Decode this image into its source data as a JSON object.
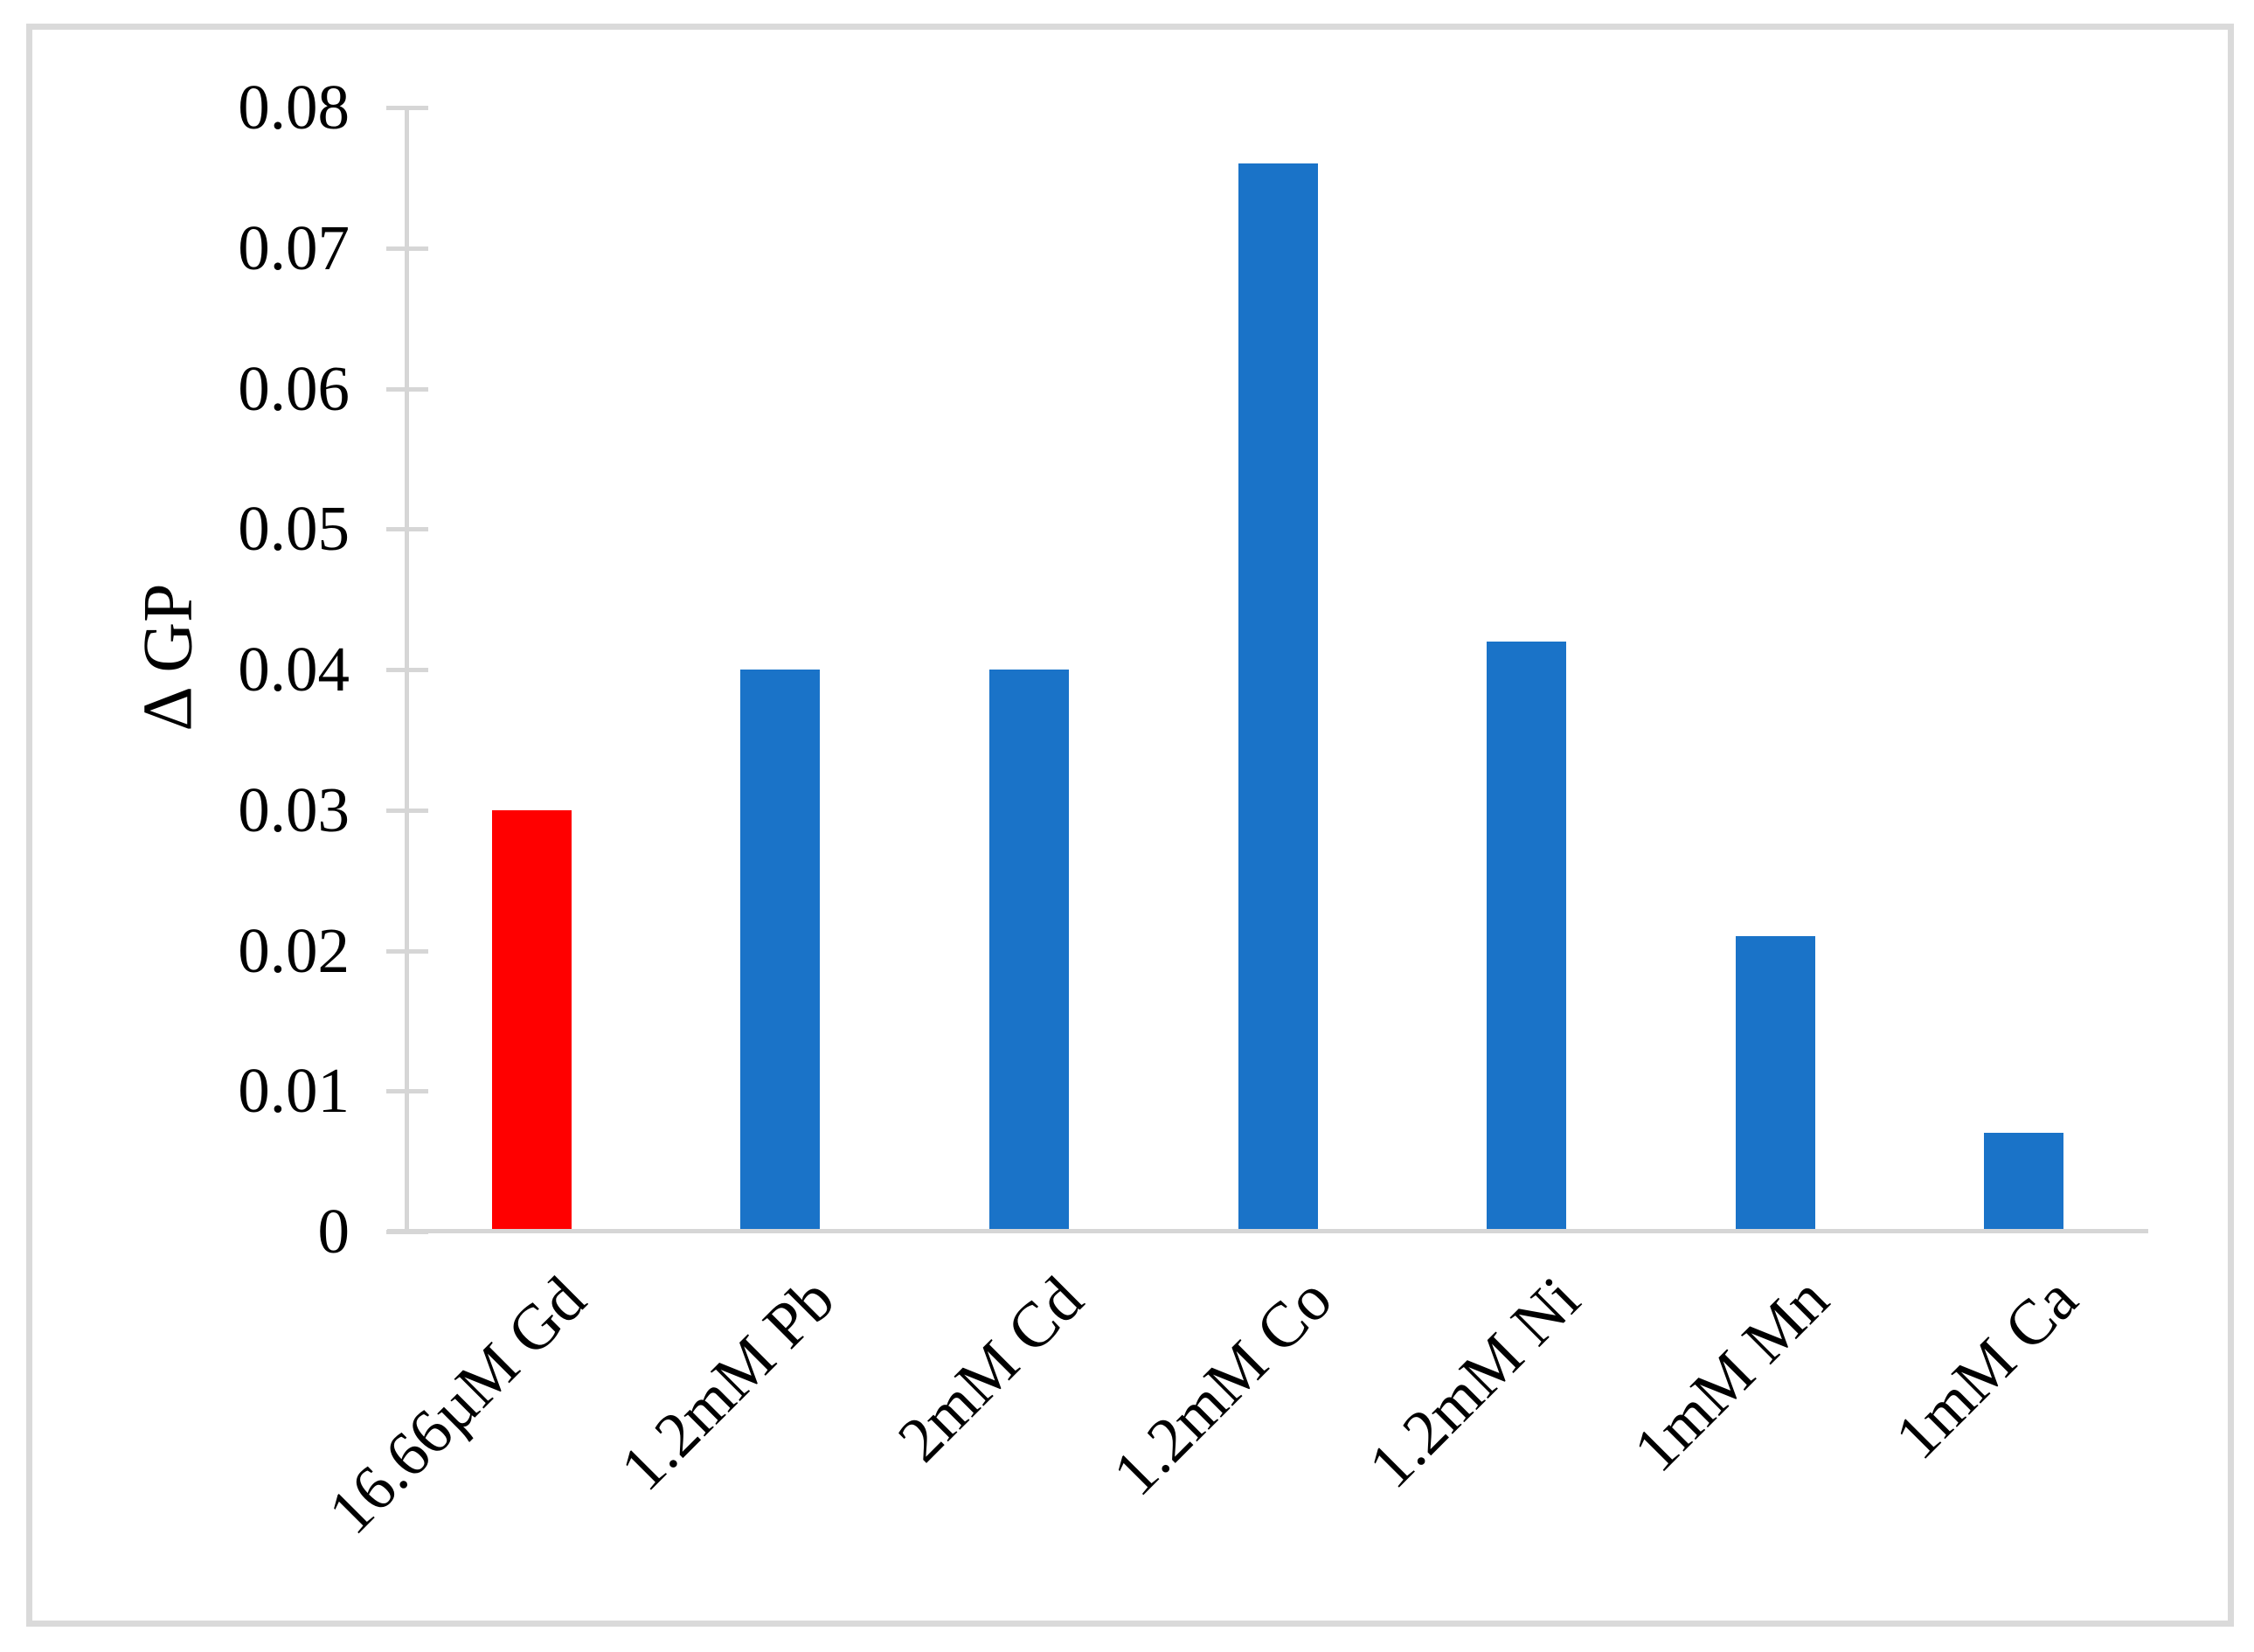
{
  "figure": {
    "background": "#FFFFFF",
    "border_color": "#DADADA"
  },
  "chart_data": {
    "type": "bar",
    "title": "",
    "xlabel": "",
    "ylabel": "Δ GP",
    "categories": [
      "16.66µM Gd",
      "1.2mM Pb",
      "2mM Cd",
      "1.2mM Co",
      "1.2mM Ni",
      "1mM Mn",
      "1mM Ca"
    ],
    "values": [
      0.03,
      0.04,
      0.04,
      0.076,
      0.042,
      0.021,
      0.007
    ],
    "bar_colors": [
      "#FF0000",
      "#1A73C8",
      "#1A73C8",
      "#1A73C8",
      "#1A73C8",
      "#1A73C8",
      "#1A73C8"
    ],
    "highlight_index": 0,
    "highlight_color": "#FF0000",
    "series_color": "#1A73C8",
    "ylim": [
      0,
      0.08
    ],
    "ytick_labels": [
      "0",
      "0.01",
      "0.02",
      "0.03",
      "0.04",
      "0.05",
      "0.06",
      "0.07",
      "0.08"
    ],
    "grid": false,
    "legend_position": "none",
    "x_label_rotation_deg": 45,
    "axis_color": "#D6D6D6",
    "text_color": "#000000"
  }
}
